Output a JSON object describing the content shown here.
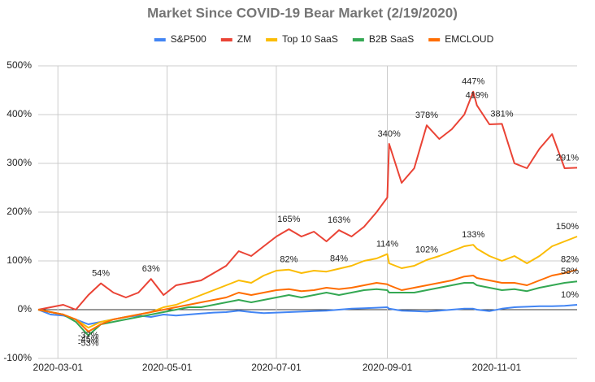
{
  "chart_data": {
    "type": "line",
    "title": "Market Since COVID-19 Bear Market (2/19/2020)",
    "x": [
      "2020-02-19",
      "2020-02-26",
      "2020-03-04",
      "2020-03-11",
      "2020-03-18",
      "2020-03-25",
      "2020-04-01",
      "2020-04-08",
      "2020-04-15",
      "2020-04-22",
      "2020-04-29",
      "2020-05-06",
      "2020-05-13",
      "2020-05-20",
      "2020-05-27",
      "2020-06-03",
      "2020-06-10",
      "2020-06-17",
      "2020-06-24",
      "2020-07-01",
      "2020-07-08",
      "2020-07-15",
      "2020-07-22",
      "2020-07-29",
      "2020-08-05",
      "2020-08-12",
      "2020-08-19",
      "2020-08-26",
      "2020-09-01",
      "2020-09-02",
      "2020-09-09",
      "2020-09-16",
      "2020-09-23",
      "2020-09-30",
      "2020-10-07",
      "2020-10-14",
      "2020-10-19",
      "2020-10-21",
      "2020-10-28",
      "2020-11-04",
      "2020-11-11",
      "2020-11-18",
      "2020-11-25",
      "2020-12-02",
      "2020-12-09",
      "2020-12-16"
    ],
    "series": [
      {
        "name": "S&P500",
        "color": "#4285f4",
        "values": [
          0,
          -10,
          -12,
          -20,
          -30,
          -25,
          -20,
          -15,
          -12,
          -15,
          -10,
          -12,
          -10,
          -8,
          -6,
          -5,
          -2,
          -5,
          -7,
          -6,
          -5,
          -4,
          -3,
          -2,
          0,
          2,
          3,
          4,
          5,
          2,
          -2,
          -3,
          -4,
          -2,
          0,
          2,
          2,
          0,
          -3,
          2,
          5,
          6,
          7,
          7,
          8,
          10
        ],
        "value_labels": [
          null,
          null,
          null,
          null,
          null,
          null,
          null,
          null,
          null,
          null,
          null,
          null,
          null,
          null,
          null,
          null,
          null,
          null,
          null,
          null,
          null,
          null,
          null,
          null,
          null,
          null,
          null,
          null,
          null,
          null,
          null,
          null,
          null,
          null,
          null,
          null,
          null,
          null,
          null,
          null,
          null,
          null,
          null,
          null,
          null,
          "10%"
        ]
      },
      {
        "name": "ZM",
        "color": "#ea4335",
        "values": [
          0,
          5,
          10,
          0,
          30,
          54,
          35,
          25,
          35,
          63,
          30,
          50,
          55,
          60,
          75,
          90,
          120,
          110,
          130,
          150,
          165,
          150,
          160,
          140,
          163,
          150,
          170,
          200,
          230,
          340,
          260,
          290,
          378,
          350,
          370,
          400,
          447,
          419,
          380,
          381,
          300,
          290,
          330,
          360,
          290,
          291
        ],
        "value_labels": [
          null,
          null,
          null,
          null,
          null,
          "54%",
          null,
          null,
          null,
          "63%",
          null,
          null,
          null,
          null,
          null,
          null,
          null,
          null,
          null,
          null,
          "165%",
          null,
          null,
          null,
          "163%",
          null,
          null,
          null,
          null,
          "340%",
          null,
          null,
          "378%",
          null,
          null,
          null,
          "447%",
          "419%",
          null,
          "381%",
          null,
          null,
          null,
          null,
          null,
          "291%"
        ]
      },
      {
        "name": "Top 10 SaaS",
        "color": "#fbbc04",
        "values": [
          0,
          -5,
          -10,
          -20,
          -37,
          -25,
          -20,
          -15,
          -10,
          -5,
          5,
          10,
          20,
          30,
          40,
          50,
          60,
          55,
          70,
          80,
          82,
          75,
          80,
          78,
          84,
          90,
          100,
          105,
          114,
          95,
          85,
          90,
          102,
          110,
          120,
          130,
          133,
          125,
          110,
          100,
          110,
          95,
          110,
          130,
          140,
          150
        ],
        "value_labels": [
          null,
          null,
          null,
          null,
          "-37%",
          null,
          null,
          null,
          null,
          null,
          null,
          null,
          null,
          null,
          null,
          null,
          null,
          null,
          null,
          null,
          "82%",
          null,
          null,
          null,
          "84%",
          null,
          null,
          null,
          "114%",
          null,
          null,
          null,
          "102%",
          null,
          null,
          null,
          "133%",
          null,
          null,
          null,
          null,
          null,
          null,
          null,
          null,
          "150%"
        ]
      },
      {
        "name": "B2B SaaS",
        "color": "#34a853",
        "values": [
          0,
          -5,
          -10,
          -25,
          -53,
          -30,
          -25,
          -20,
          -15,
          -10,
          -5,
          0,
          5,
          5,
          10,
          15,
          20,
          15,
          20,
          25,
          30,
          25,
          30,
          35,
          30,
          35,
          40,
          42,
          40,
          35,
          35,
          35,
          40,
          45,
          50,
          55,
          55,
          50,
          45,
          40,
          42,
          38,
          45,
          50,
          55,
          58
        ],
        "value_labels": [
          null,
          null,
          null,
          null,
          "-53%",
          null,
          null,
          null,
          null,
          null,
          null,
          null,
          null,
          null,
          null,
          null,
          null,
          null,
          null,
          null,
          null,
          null,
          null,
          null,
          null,
          null,
          null,
          null,
          null,
          null,
          null,
          null,
          null,
          null,
          null,
          null,
          null,
          null,
          null,
          null,
          null,
          null,
          null,
          null,
          null,
          "58%"
        ]
      },
      {
        "name": "EMCLOUD",
        "color": "#ff6d01",
        "values": [
          0,
          -5,
          -10,
          -20,
          -45,
          -30,
          -20,
          -15,
          -10,
          -5,
          0,
          5,
          10,
          15,
          20,
          25,
          35,
          30,
          35,
          40,
          42,
          38,
          40,
          45,
          42,
          45,
          50,
          55,
          52,
          50,
          40,
          45,
          50,
          55,
          60,
          68,
          70,
          65,
          60,
          55,
          55,
          50,
          60,
          70,
          75,
          82
        ],
        "value_labels": [
          null,
          null,
          null,
          null,
          "-45%",
          null,
          null,
          null,
          null,
          null,
          null,
          null,
          null,
          null,
          null,
          null,
          null,
          null,
          null,
          null,
          null,
          null,
          null,
          null,
          null,
          null,
          null,
          null,
          null,
          null,
          null,
          null,
          null,
          null,
          null,
          null,
          null,
          null,
          null,
          null,
          null,
          null,
          null,
          null,
          null,
          "82%"
        ]
      }
    ],
    "xlim": [
      "2020-02-19",
      "2020-12-16"
    ],
    "xticks": [
      "2020-03-01",
      "2020-05-01",
      "2020-07-01",
      "2020-09-01",
      "2020-11-01"
    ],
    "ylim": [
      -100,
      500
    ],
    "yticks": [
      {
        "value": -100,
        "label": "-100%"
      },
      {
        "value": 0,
        "label": "0%"
      },
      {
        "value": 100,
        "label": "100%"
      },
      {
        "value": 200,
        "label": "200%"
      },
      {
        "value": 300,
        "label": "300%"
      },
      {
        "value": 400,
        "label": "400%"
      },
      {
        "value": 500,
        "label": "500%"
      }
    ],
    "grid": true,
    "legend": "top"
  }
}
